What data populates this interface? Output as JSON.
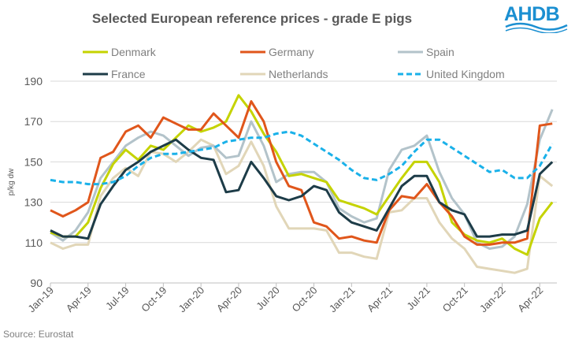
{
  "chart_data": {
    "type": "line",
    "title": "Selected European reference prices - grade E pigs",
    "ylabel": "p/kg dw",
    "xlabel": "",
    "ylim": [
      90,
      190
    ],
    "yticks": [
      90,
      110,
      130,
      150,
      170,
      190
    ],
    "grid": "horizontal",
    "legend_placement": "top",
    "x": [
      "Jan-19",
      "Feb-19",
      "Mar-19",
      "Apr-19",
      "May-19",
      "Jun-19",
      "Jul-19",
      "Aug-19",
      "Sep-19",
      "Oct-19",
      "Nov-19",
      "Dec-19",
      "Jan-20",
      "Feb-20",
      "Mar-20",
      "Apr-20",
      "May-20",
      "Jun-20",
      "Jul-20",
      "Aug-20",
      "Sep-20",
      "Oct-20",
      "Nov-20",
      "Dec-20",
      "Jan-21",
      "Feb-21",
      "Mar-21",
      "Apr-21",
      "May-21",
      "Jun-21",
      "Jul-21",
      "Aug-21",
      "Sep-21",
      "Oct-21",
      "Nov-21",
      "Dec-21",
      "Jan-22",
      "Feb-22",
      "Mar-22",
      "Apr-22",
      "May-22"
    ],
    "xtick_labels": [
      "Jan-19",
      "Apr-19",
      "Jul-19",
      "Oct-19",
      "Jan-20",
      "Apr-20",
      "Jul-20",
      "Oct-20",
      "Jan-21",
      "Apr-21",
      "Jul-21",
      "Oct-21",
      "Jan-22",
      "Apr-22"
    ],
    "series": [
      {
        "name": "Denmark",
        "color": "#c5d300",
        "dash": false,
        "values": [
          115,
          113,
          113,
          120,
          137,
          149,
          156,
          151,
          158,
          156,
          162,
          168,
          165,
          167,
          170,
          183,
          175,
          164,
          155,
          143,
          144,
          142,
          140,
          131,
          129,
          127,
          124,
          133,
          142,
          150,
          150,
          140,
          120,
          114,
          111,
          110,
          112,
          107,
          104,
          122,
          130
        ]
      },
      {
        "name": "Germany",
        "color": "#e0561b",
        "dash": false,
        "values": [
          126,
          123,
          126,
          130,
          152,
          155,
          165,
          168,
          162,
          172,
          169,
          166,
          166,
          174,
          168,
          162,
          180,
          170,
          150,
          138,
          136,
          120,
          118,
          112,
          113,
          111,
          110,
          126,
          133,
          132,
          139,
          130,
          123,
          113,
          109,
          109,
          110,
          110,
          112,
          168,
          169
        ]
      },
      {
        "name": "Spain",
        "color": "#b3c3ca",
        "dash": false,
        "values": [
          115,
          111,
          116,
          125,
          142,
          150,
          158,
          162,
          165,
          163,
          158,
          153,
          157,
          158,
          152,
          153,
          170,
          158,
          140,
          144,
          145,
          145,
          140,
          127,
          123,
          120,
          122,
          146,
          156,
          158,
          163,
          145,
          132,
          124,
          110,
          107,
          108,
          113,
          129,
          161,
          176
        ]
      },
      {
        "name": "France",
        "color": "#1d3c48",
        "dash": false,
        "values": [
          116,
          113,
          113,
          112,
          129,
          138,
          146,
          150,
          155,
          158,
          161,
          156,
          152,
          151,
          135,
          136,
          150,
          142,
          133,
          131,
          133,
          138,
          136,
          125,
          120,
          118,
          116,
          127,
          138,
          143,
          143,
          130,
          126,
          124,
          113,
          113,
          114,
          114,
          116,
          144,
          150
        ]
      },
      {
        "name": "Netherlands",
        "color": "#e1d6b8",
        "dash": false,
        "values": [
          110,
          107,
          109,
          109,
          133,
          142,
          147,
          143,
          155,
          154,
          150,
          155,
          161,
          158,
          144,
          148,
          160,
          148,
          128,
          117,
          117,
          117,
          116,
          105,
          105,
          103,
          102,
          125,
          126,
          132,
          132,
          120,
          112,
          107,
          98,
          97,
          96,
          95,
          97,
          143,
          138
        ]
      },
      {
        "name": "United Kingdom",
        "color": "#1ab1e9",
        "dash": true,
        "values": [
          141,
          140,
          140,
          139,
          139,
          140,
          143,
          148,
          152,
          154,
          154,
          155,
          156,
          157,
          160,
          161,
          162,
          162,
          164,
          165,
          163,
          159,
          155,
          151,
          146,
          142,
          141,
          144,
          148,
          155,
          161,
          161,
          157,
          153,
          149,
          145,
          146,
          142,
          142,
          148,
          159
        ]
      }
    ]
  },
  "logo": {
    "text": "AHDB"
  },
  "source": "Source:  Eurostat"
}
